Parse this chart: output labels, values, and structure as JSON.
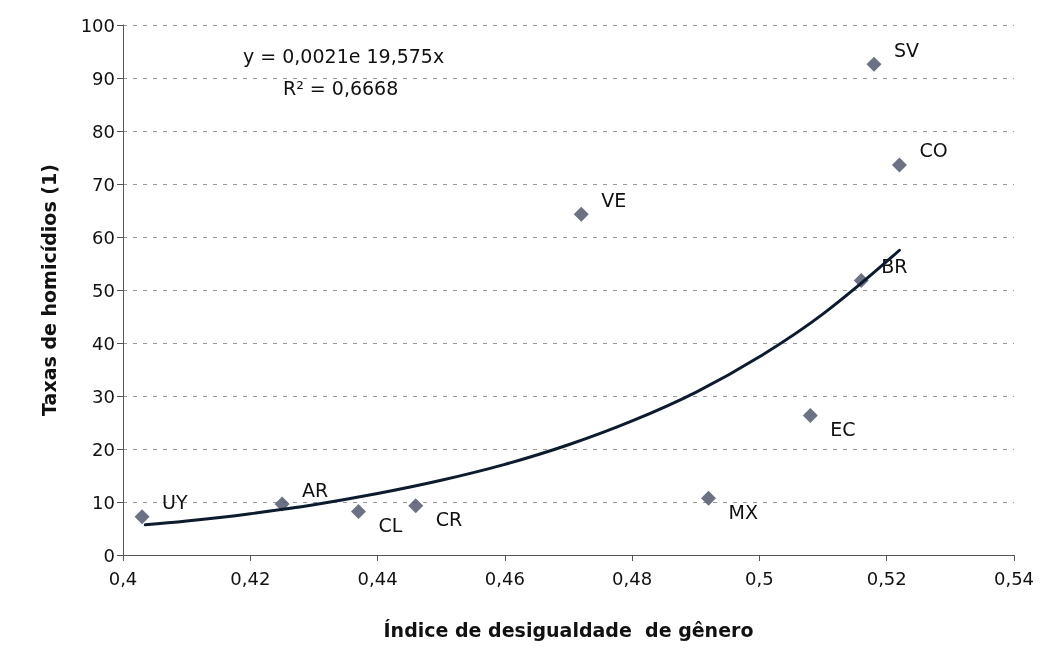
{
  "chart_data": {
    "type": "scatter",
    "xlabel": "Índice de desigualdade  de gênero",
    "ylabel": "Taxas de homicídios (1)",
    "xlim": [
      0.4,
      0.54
    ],
    "xticks": [
      {
        "value": 0.4,
        "label": "0,4"
      },
      {
        "value": 0.42,
        "label": "0,42"
      },
      {
        "value": 0.44,
        "label": "0,44"
      },
      {
        "value": 0.46,
        "label": "0,46"
      },
      {
        "value": 0.48,
        "label": "0,48"
      },
      {
        "value": 0.5,
        "label": "0,5"
      },
      {
        "value": 0.52,
        "label": "0,52"
      },
      {
        "value": 0.54,
        "label": "0,54"
      }
    ],
    "ylim": [
      0,
      100
    ],
    "yticks": [
      0,
      10,
      20,
      30,
      40,
      50,
      60,
      70,
      80,
      90,
      100
    ],
    "grid": "y",
    "marker": "diamond",
    "series": [
      {
        "color": "#474e68",
        "x": [
          0.403,
          0.425,
          0.437,
          0.446,
          0.472,
          0.492,
          0.508,
          0.516,
          0.518,
          0.522
        ],
        "values": [
          7.2,
          9.6,
          8.2,
          9.3,
          64.3,
          10.7,
          26.3,
          51.8,
          92.6,
          73.6
        ]
      },
      {
        "type": "line",
        "color": "#0d1b2e",
        "marker": "none",
        "line_style": "solid",
        "x": [
          0.4035,
          0.41,
          0.42,
          0.43,
          0.44,
          0.45,
          0.46,
          0.47,
          0.48,
          0.49,
          0.5,
          0.51,
          0.522
        ],
        "values": [
          5.7,
          6.4,
          7.8,
          9.5,
          11.6,
          14.1,
          17.1,
          20.8,
          25.3,
          30.7,
          37.4,
          45.5,
          57.5
        ]
      }
    ],
    "annotations": [
      "y = 0,0021e 19,575x",
      "R² = 0,6668",
      {
        "text": "UY",
        "x": 0.403,
        "y": 7.2
      },
      {
        "text": "AR",
        "x": 0.425,
        "y": 9.6
      },
      {
        "text": "CL",
        "x": 0.437,
        "y": 8.2
      },
      {
        "text": "CR",
        "x": 0.446,
        "y": 9.3
      },
      {
        "text": "VE",
        "x": 0.472,
        "y": 64.3
      },
      {
        "text": "MX",
        "x": 0.492,
        "y": 10.7
      },
      {
        "text": "EC",
        "x": 0.508,
        "y": 26.3
      },
      {
        "text": "BR",
        "x": 0.516,
        "y": 51.8
      },
      {
        "text": "SV",
        "x": 0.518,
        "y": 92.6
      },
      {
        "text": "CO",
        "x": 0.522,
        "y": 73.6
      }
    ]
  }
}
